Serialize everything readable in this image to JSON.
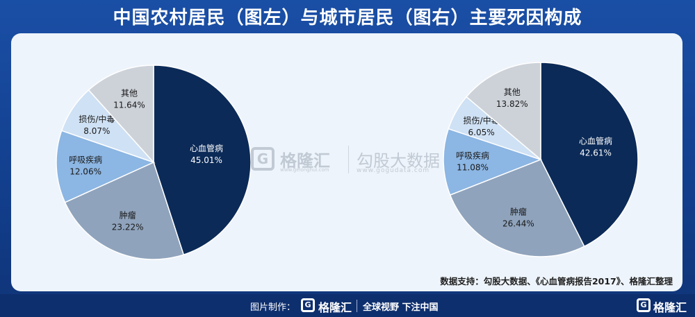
{
  "title": "中国农村居民（图左）与城市居民（图右）主要死因构成",
  "source": "数据支持：勾股大数据、《心血管病报告2017》、格隆汇整理",
  "watermark": {
    "logo_glyph": "G",
    "name1": "格隆汇",
    "url1": "www.gelonghui.com",
    "name2": "勾股大数据",
    "url2": "www.gogudata.com"
  },
  "footer": {
    "made_by_label": "图片制作：",
    "logo_glyph": "G",
    "brand": "格隆汇",
    "slogan": "全球视野 下注中国"
  },
  "corner": {
    "logo_glyph": "G",
    "brand": "格隆汇"
  },
  "chart_data": [
    {
      "type": "pie",
      "categories": [
        "心血管病",
        "肿瘤",
        "呼吸疾病",
        "损伤/中毒",
        "其他"
      ],
      "values": [
        45.01,
        23.22,
        12.06,
        8.07,
        11.64
      ],
      "value_labels": [
        "45.01%",
        "23.22%",
        "12.06%",
        "8.07%",
        "11.64%"
      ],
      "colors": [
        "#0b2a57",
        "#8fa3bc",
        "#8cb6e3",
        "#cfe1f4",
        "#cdd2d9"
      ],
      "label_colors": [
        "#ffffff",
        "#1a1a1a",
        "#1a1a1a",
        "#1a1a1a",
        "#1a1a1a"
      ],
      "start_angle_deg": 0,
      "direction": "clockwise"
    },
    {
      "type": "pie",
      "categories": [
        "心血管病",
        "肿瘤",
        "呼吸疾病",
        "损伤/中毒",
        "其他"
      ],
      "values": [
        42.61,
        26.44,
        11.08,
        6.05,
        13.82
      ],
      "value_labels": [
        "42.61%",
        "26.44%",
        "11.08%",
        "6.05%",
        "13.82%"
      ],
      "colors": [
        "#0b2a57",
        "#8fa3bc",
        "#8cb6e3",
        "#cfe1f4",
        "#cdd2d9"
      ],
      "label_colors": [
        "#ffffff",
        "#1a1a1a",
        "#1a1a1a",
        "#1a1a1a",
        "#1a1a1a"
      ],
      "start_angle_deg": 0,
      "direction": "clockwise"
    }
  ]
}
